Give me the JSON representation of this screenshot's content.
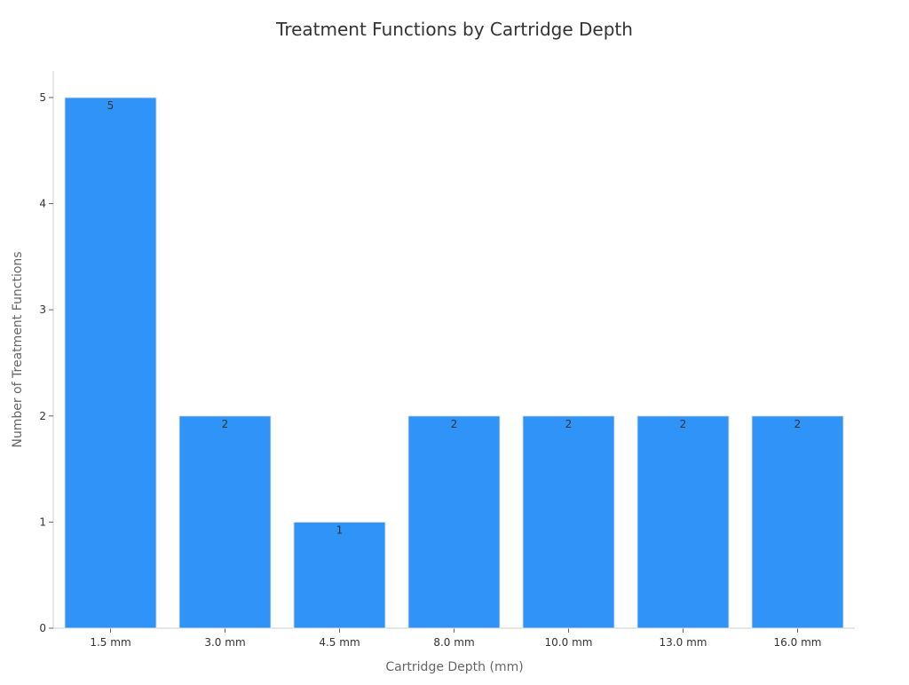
{
  "chart_data": {
    "type": "bar",
    "title": "Treatment Functions by Cartridge Depth",
    "xlabel": "Cartridge Depth (mm)",
    "ylabel": "Number of Treatment Functions",
    "categories": [
      "1.5 mm",
      "3.0 mm",
      "4.5 mm",
      "8.0 mm",
      "10.0 mm",
      "13.0 mm",
      "16.0 mm"
    ],
    "values": [
      5,
      2,
      1,
      2,
      2,
      2,
      2
    ],
    "ylim": [
      0,
      5.25
    ],
    "yticks": [
      0,
      1,
      2,
      3,
      4,
      5
    ],
    "grid": false,
    "legend": "none",
    "colors": {
      "bar_fill": "#2f93f7",
      "bar_stroke": "#e6e6e6",
      "axis": "#cccccc",
      "text": "#333333",
      "axis_label": "#666666"
    }
  }
}
